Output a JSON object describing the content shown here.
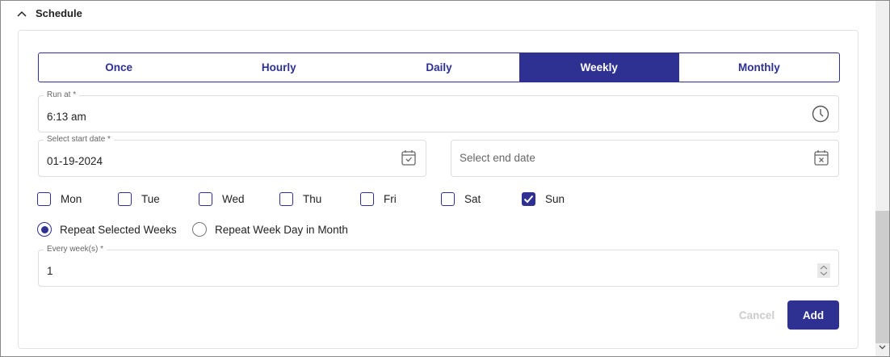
{
  "section": {
    "title": "Schedule",
    "icon": "chevron-up-icon"
  },
  "tabs": [
    {
      "label": "Once"
    },
    {
      "label": "Hourly"
    },
    {
      "label": "Daily"
    },
    {
      "label": "Weekly",
      "active": true
    },
    {
      "label": "Monthly"
    }
  ],
  "run_at": {
    "label": "Run at *",
    "value": "6:13 am",
    "icon": "clock-icon"
  },
  "start_date": {
    "label": "Select start date *",
    "value": "01-19-2024",
    "icon": "calendar-check-icon"
  },
  "end_date": {
    "placeholder": "Select end date",
    "icon": "calendar-x-icon"
  },
  "days": [
    {
      "label": "Mon",
      "checked": false
    },
    {
      "label": "Tue",
      "checked": false
    },
    {
      "label": "Wed",
      "checked": false
    },
    {
      "label": "Thu",
      "checked": false
    },
    {
      "label": "Fri",
      "checked": false
    },
    {
      "label": "Sat",
      "checked": false
    },
    {
      "label": "Sun",
      "checked": true
    }
  ],
  "repeat": [
    {
      "label": "Repeat Selected Weeks",
      "selected": true
    },
    {
      "label": "Repeat Week Day in Month",
      "selected": false
    }
  ],
  "every_weeks": {
    "label": "Every week(s) *",
    "value": "1"
  },
  "buttons": {
    "cancel": "Cancel",
    "add": "Add"
  },
  "colors": {
    "accent": "#2e3192",
    "disabled": "#cccccc"
  }
}
